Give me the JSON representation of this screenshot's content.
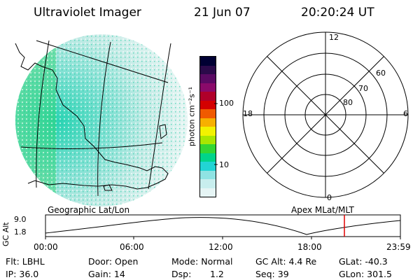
{
  "header": {
    "title": "Ultraviolet Imager",
    "date": "21 Jun 07",
    "time": "20:20:24 UT"
  },
  "colorbar": {
    "unit_label": "photon cm⁻²s⁻¹",
    "ticks": [
      "100",
      "10"
    ],
    "colors": [
      "#000033",
      "#2b0a4a",
      "#5a0a63",
      "#8a0a6a",
      "#b0002a",
      "#d40000",
      "#f05a00",
      "#f7b000",
      "#f2f200",
      "#a8e600",
      "#33d633",
      "#00d48a",
      "#22d4d4",
      "#8fe3e3",
      "#c8eeee",
      "#e6f5f5"
    ]
  },
  "polar_plot": {
    "mlt_labels": {
      "top": "12",
      "left": "18",
      "right": "6",
      "bottom": "0"
    },
    "lat_labels": [
      "60",
      "70",
      "80"
    ]
  },
  "orbit_panel": {
    "left_caption": "Geographic Lat/Lon",
    "right_caption": "Apex MLat/MLT",
    "y_axis_label": "GC Alt",
    "y_ticks": [
      "9.0",
      "1.8"
    ],
    "time_ticks": [
      "00:00",
      "06:00",
      "12:00",
      "18:00",
      "23:59"
    ],
    "current_time_marker": "20:20",
    "marker_color": "#e00000"
  },
  "footer": {
    "filter": "Flt: LBHL",
    "door": "Door: Open",
    "mode": "Mode: Normal",
    "gc_alt": "GC Alt: 4.4 Re",
    "glat": "GLat: -40.3",
    "ip": "IP: 36.0",
    "gain": "Gain: 14",
    "dsp_label": "Dsp:",
    "dsp_value": "1.2",
    "seq": "Seq: 39",
    "glon": "GLon: 301.5"
  }
}
